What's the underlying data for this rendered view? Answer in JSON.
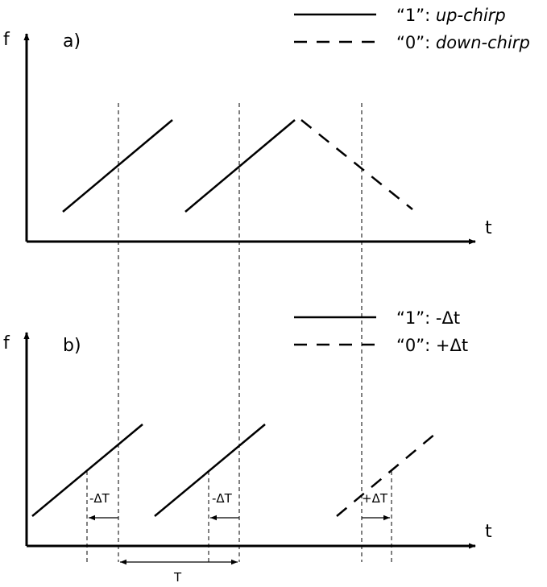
{
  "panel_a": {
    "label": "a)",
    "y_axis_label": "f",
    "x_axis_label": "t",
    "legend": [
      {
        "line": "solid",
        "prefix": "“1”: ",
        "meaning": "up-chirp"
      },
      {
        "line": "dashed",
        "prefix": "“0”: ",
        "meaning": "down-chirp"
      }
    ]
  },
  "panel_b": {
    "label": "b)",
    "y_axis_label": "f",
    "x_axis_label": "t",
    "legend": [
      {
        "line": "solid",
        "text": "“1”: -Δt"
      },
      {
        "line": "dashed",
        "text": "“0”: +Δt"
      }
    ],
    "offset_labels": [
      "-ΔT",
      "-ΔT",
      "+ΔT"
    ],
    "period_label": "T"
  }
}
